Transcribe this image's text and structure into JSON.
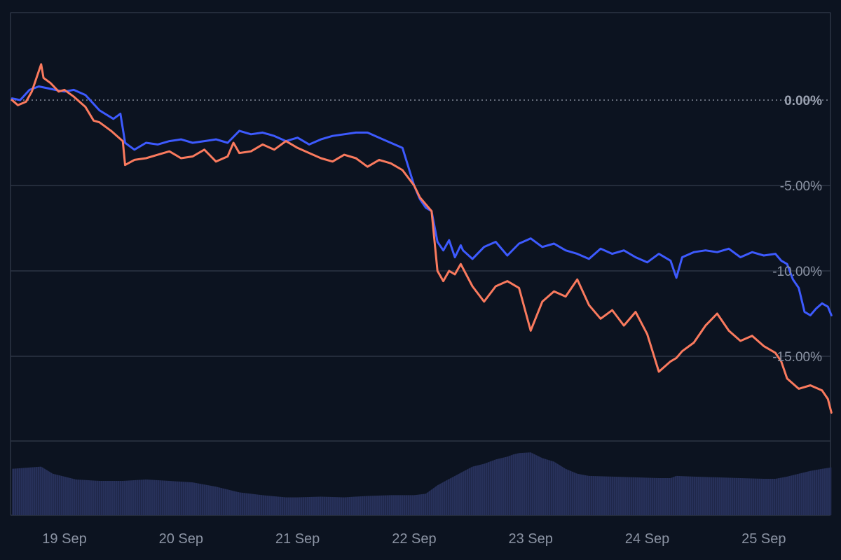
{
  "chart_data": {
    "type": "line",
    "x_axis": {
      "ticks": [
        "19 Sep",
        "20 Sep",
        "21 Sep",
        "22 Sep",
        "23 Sep",
        "24 Sep",
        "25 Sep"
      ],
      "range_days": [
        18.55,
        25.58
      ]
    },
    "y_axis": {
      "ticks": [
        "0.00%",
        "-5.00%",
        "-10.00%",
        "-15.00%"
      ],
      "tick_values": [
        0,
        -5,
        -10,
        -15
      ],
      "ylim": [
        -20,
        5
      ],
      "position": "right"
    },
    "grid": true,
    "legend": "none",
    "reference_line": {
      "y": 0,
      "style": "dotted"
    },
    "series": [
      {
        "color": "#3d5afe",
        "x": [
          18.55,
          18.62,
          18.7,
          18.78,
          18.85,
          18.92,
          19.0,
          19.08,
          19.18,
          19.3,
          19.42,
          19.48,
          19.52,
          19.56,
          19.6,
          19.7,
          19.8,
          19.9,
          20.0,
          20.1,
          20.2,
          20.3,
          20.4,
          20.5,
          20.6,
          20.7,
          20.8,
          20.9,
          21.0,
          21.1,
          21.2,
          21.3,
          21.4,
          21.5,
          21.6,
          21.7,
          21.8,
          21.9,
          22.0,
          22.05,
          22.1,
          22.15,
          22.2,
          22.25,
          22.3,
          22.35,
          22.4,
          22.42,
          22.5,
          22.6,
          22.7,
          22.8,
          22.9,
          23.0,
          23.1,
          23.2,
          23.3,
          23.4,
          23.5,
          23.6,
          23.7,
          23.8,
          23.9,
          24.0,
          24.1,
          24.2,
          24.25,
          24.3,
          24.4,
          24.5,
          24.6,
          24.7,
          24.8,
          24.9,
          25.0,
          25.1,
          25.15,
          25.2,
          25.25,
          25.3,
          25.35,
          25.4,
          25.45,
          25.5,
          25.55,
          25.58
        ],
        "values": [
          0.1,
          0.0,
          0.6,
          0.8,
          0.7,
          0.6,
          0.5,
          0.6,
          0.3,
          -0.6,
          -1.1,
          -0.8,
          -2.5,
          -2.7,
          -2.9,
          -2.5,
          -2.6,
          -2.4,
          -2.3,
          -2.5,
          -2.4,
          -2.3,
          -2.5,
          -1.8,
          -2.0,
          -1.9,
          -2.1,
          -2.4,
          -2.2,
          -2.6,
          -2.3,
          -2.1,
          -2.0,
          -1.9,
          -1.9,
          -2.2,
          -2.5,
          -2.8,
          -5.0,
          -5.8,
          -6.3,
          -6.5,
          -8.3,
          -8.8,
          -8.2,
          -9.2,
          -8.5,
          -8.8,
          -9.3,
          -8.6,
          -8.3,
          -9.1,
          -8.4,
          -8.1,
          -8.6,
          -8.4,
          -8.8,
          -9.0,
          -9.3,
          -8.7,
          -9.0,
          -8.8,
          -9.2,
          -9.5,
          -9.0,
          -9.4,
          -10.4,
          -9.2,
          -8.9,
          -8.8,
          -8.9,
          -8.7,
          -9.2,
          -8.9,
          -9.1,
          -9.0,
          -9.4,
          -9.6,
          -10.5,
          -11.0,
          -12.4,
          -12.6,
          -12.2,
          -11.9,
          -12.1,
          -12.6
        ]
      },
      {
        "color": "#fa7a5e",
        "x": [
          18.55,
          18.6,
          18.67,
          18.72,
          18.8,
          18.82,
          18.88,
          18.95,
          19.0,
          19.08,
          19.18,
          19.25,
          19.3,
          19.4,
          19.45,
          19.5,
          19.52,
          19.6,
          19.7,
          19.8,
          19.9,
          20.0,
          20.1,
          20.2,
          20.3,
          20.4,
          20.45,
          20.5,
          20.6,
          20.7,
          20.8,
          20.9,
          21.0,
          21.1,
          21.2,
          21.3,
          21.4,
          21.5,
          21.6,
          21.7,
          21.8,
          21.9,
          22.0,
          22.05,
          22.1,
          22.15,
          22.2,
          22.25,
          22.3,
          22.35,
          22.4,
          22.5,
          22.6,
          22.7,
          22.8,
          22.9,
          23.0,
          23.1,
          23.2,
          23.3,
          23.4,
          23.5,
          23.6,
          23.7,
          23.8,
          23.9,
          24.0,
          24.1,
          24.2,
          24.25,
          24.3,
          24.4,
          24.5,
          24.6,
          24.7,
          24.8,
          24.9,
          25.0,
          25.1,
          25.15,
          25.2,
          25.3,
          25.4,
          25.5,
          25.55,
          25.58
        ],
        "values": [
          0.0,
          -0.3,
          -0.1,
          0.5,
          2.1,
          1.3,
          1.0,
          0.5,
          0.6,
          0.2,
          -0.4,
          -1.2,
          -1.3,
          -1.8,
          -2.1,
          -2.4,
          -3.8,
          -3.5,
          -3.4,
          -3.2,
          -3.0,
          -3.4,
          -3.3,
          -2.9,
          -3.6,
          -3.3,
          -2.5,
          -3.1,
          -3.0,
          -2.6,
          -2.9,
          -2.4,
          -2.8,
          -3.1,
          -3.4,
          -3.6,
          -3.2,
          -3.4,
          -3.9,
          -3.5,
          -3.7,
          -4.1,
          -5.0,
          -5.7,
          -6.1,
          -6.5,
          -10.0,
          -10.6,
          -10.0,
          -10.2,
          -9.6,
          -10.9,
          -11.8,
          -10.9,
          -10.6,
          -11.0,
          -13.5,
          -11.8,
          -11.2,
          -11.5,
          -10.5,
          -12.0,
          -12.8,
          -12.3,
          -13.2,
          -12.4,
          -13.7,
          -15.9,
          -15.3,
          -15.1,
          -14.7,
          -14.2,
          -13.2,
          -12.5,
          -13.5,
          -14.1,
          -13.8,
          -14.4,
          -14.8,
          -15.3,
          -16.3,
          -16.9,
          -16.7,
          -17.0,
          -17.5,
          -18.3
        ]
      }
    ],
    "volume": {
      "color": "#27315a",
      "x": [
        18.55,
        18.8,
        18.9,
        19.1,
        19.3,
        19.5,
        19.7,
        19.9,
        20.1,
        20.3,
        20.5,
        20.7,
        20.9,
        21.0,
        21.2,
        21.4,
        21.6,
        21.8,
        22.0,
        22.1,
        22.2,
        22.35,
        22.5,
        22.6,
        22.7,
        22.8,
        22.85,
        22.9,
        23.0,
        23.1,
        23.2,
        23.3,
        23.4,
        23.5,
        23.7,
        23.9,
        24.1,
        24.2,
        24.25,
        24.4,
        24.6,
        24.8,
        25.0,
        25.1,
        25.2,
        25.3,
        25.4,
        25.5,
        25.58
      ],
      "values": [
        0.65,
        0.68,
        0.58,
        0.5,
        0.48,
        0.48,
        0.5,
        0.48,
        0.46,
        0.4,
        0.32,
        0.28,
        0.25,
        0.25,
        0.26,
        0.25,
        0.27,
        0.28,
        0.28,
        0.3,
        0.42,
        0.55,
        0.68,
        0.72,
        0.78,
        0.82,
        0.85,
        0.87,
        0.88,
        0.8,
        0.75,
        0.65,
        0.58,
        0.55,
        0.54,
        0.53,
        0.52,
        0.52,
        0.55,
        0.54,
        0.53,
        0.52,
        0.51,
        0.51,
        0.54,
        0.58,
        0.62,
        0.65,
        0.67
      ]
    }
  }
}
